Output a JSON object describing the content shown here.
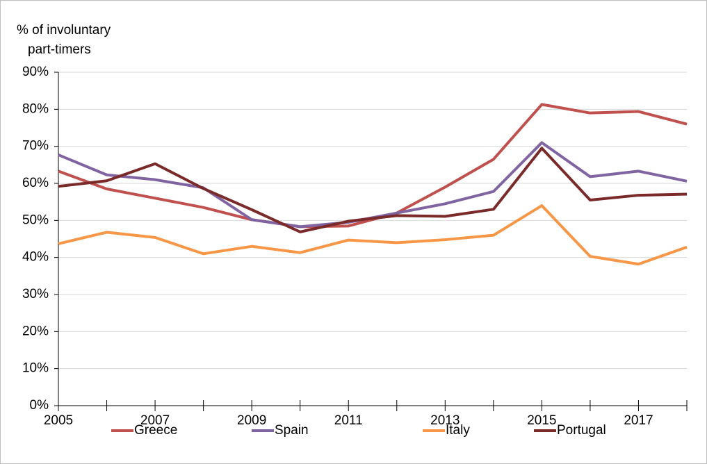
{
  "chart_data": {
    "type": "line",
    "ylabel": [
      "% of involuntary",
      "part-timers"
    ],
    "x": [
      2005,
      2006,
      2007,
      2008,
      2009,
      2010,
      2011,
      2012,
      2013,
      2014,
      2015,
      2016,
      2017,
      2018
    ],
    "xlim": [
      2005,
      2018
    ],
    "xticks": [
      2005,
      2007,
      2009,
      2011,
      2013,
      2015,
      2017
    ],
    "ylim": [
      0,
      90
    ],
    "yticks": [
      {
        "value": 0,
        "label": "0%"
      },
      {
        "value": 10,
        "label": "10%"
      },
      {
        "value": 20,
        "label": "20%"
      },
      {
        "value": 30,
        "label": "30%"
      },
      {
        "value": 40,
        "label": "40%"
      },
      {
        "value": 50,
        "label": "50%"
      },
      {
        "value": 60,
        "label": "60%"
      },
      {
        "value": 70,
        "label": "70%"
      },
      {
        "value": 80,
        "label": "80%"
      },
      {
        "value": 90,
        "label": "90%"
      }
    ],
    "grid": true,
    "legend": "bottom",
    "series": [
      {
        "name": "Greece",
        "color": "#c0504d",
        "values": [
          63.3,
          58.5,
          56,
          53.5,
          50.2,
          48.3,
          48.5,
          52,
          59,
          66.5,
          81.3,
          79,
          79.4,
          76
        ]
      },
      {
        "name": "Spain",
        "color": "#8064a2",
        "values": [
          67.7,
          62.3,
          61,
          58.8,
          50.2,
          48.3,
          49.5,
          52,
          54.5,
          57.8,
          71,
          61.8,
          63.3,
          60.6
        ]
      },
      {
        "name": "Italy",
        "color": "#f79646",
        "values": [
          43.7,
          46.8,
          45.4,
          41,
          43,
          41.3,
          44.7,
          44,
          44.8,
          46,
          54,
          40.3,
          38.2,
          42.8
        ]
      },
      {
        "name": "Portugal",
        "color": "#7b2a2a",
        "values": [
          59.2,
          60.7,
          65.3,
          58.6,
          52.9,
          46.9,
          49.8,
          51.3,
          51.1,
          53,
          69.5,
          55.5,
          56.8,
          57.1
        ]
      }
    ]
  }
}
